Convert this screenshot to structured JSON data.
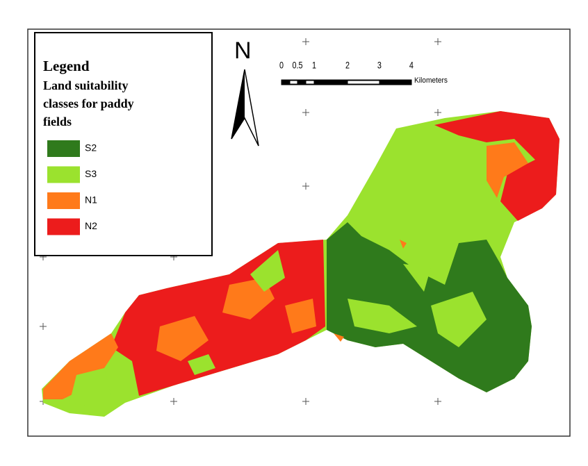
{
  "legend": {
    "title": "Legend",
    "subtitle_lines": [
      "Land suitability",
      "classes for paddy",
      "fields"
    ],
    "classes": [
      {
        "label": "S2",
        "color": "#2f7a1c"
      },
      {
        "label": "S3",
        "color": "#9be22e"
      },
      {
        "label": "N1",
        "color": "#ff7a1a"
      },
      {
        "label": "N2",
        "color": "#ec1c1c"
      }
    ]
  },
  "north": "N",
  "scale": {
    "labels": [
      "0",
      "0.5",
      "1",
      "2",
      "3",
      "4"
    ],
    "unit": "Kilometers"
  }
}
